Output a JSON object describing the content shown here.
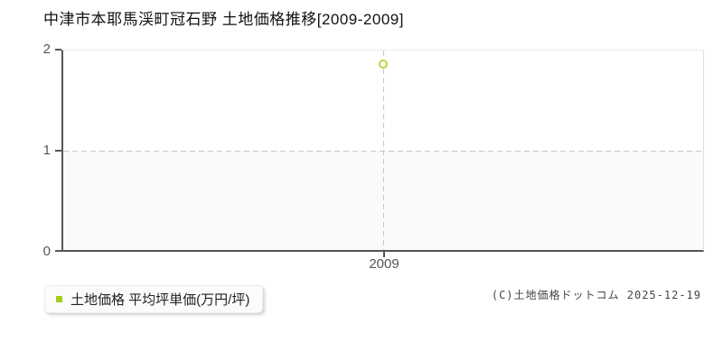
{
  "header": {
    "title": "中津市本耶馬渓町冠石野 土地価格推移[2009-2009]"
  },
  "axes": {
    "y_ticks": [
      "0",
      "1",
      "2"
    ],
    "x_ticks": [
      "2009"
    ]
  },
  "legend": {
    "label": "土地価格 平均坪単価(万円/坪)",
    "marker_color": "#a4cd1e"
  },
  "footer": {
    "copyright": "(C)土地価格ドットコム 2025-12-19"
  },
  "chart_data": {
    "type": "scatter",
    "title": "中津市本耶馬渓町冠石野 土地価格推移[2009-2009]",
    "categories": [
      "2009"
    ],
    "series": [
      {
        "name": "土地価格 平均坪単価(万円/坪)",
        "values": [
          1.86
        ]
      }
    ],
    "ylim": [
      0,
      2
    ],
    "yticks": [
      0,
      1,
      2
    ],
    "xlabel": "",
    "ylabel": "",
    "grid": "horizontal dashed at y=1, vertical dashed at x=2009, shaded band from y=0 to y=1",
    "legend_position": "bottom-left",
    "point_style": "open-circle",
    "point_color": "#bdd741",
    "band_color": "#fafafa"
  }
}
